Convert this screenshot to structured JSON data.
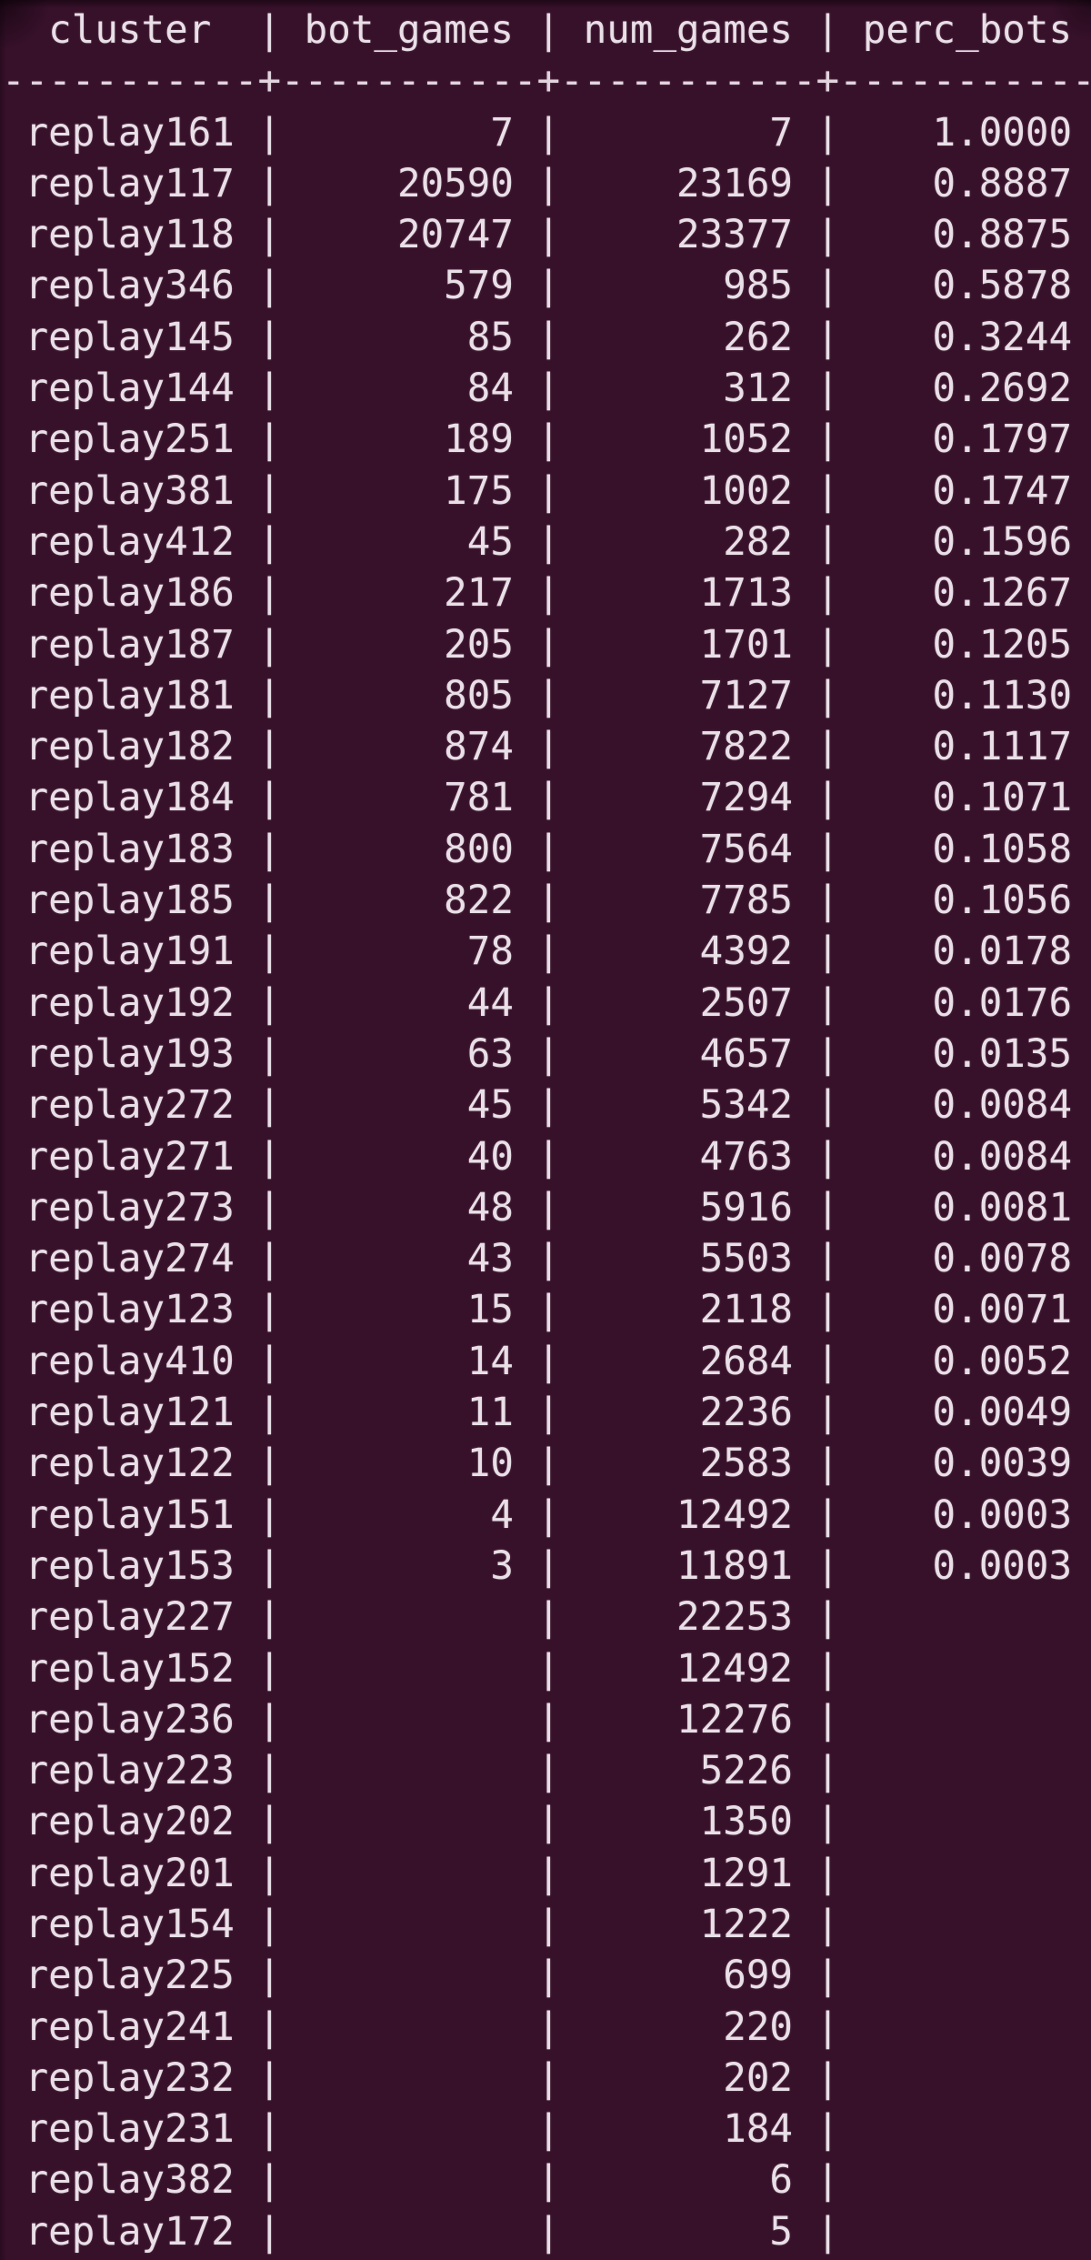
{
  "terminal": {
    "colors": {
      "background": "#37102a",
      "text": "#e9dfe7"
    },
    "table": {
      "columns": [
        "cluster",
        "bot_games",
        "num_games",
        "perc_bots"
      ],
      "column_content_width": 9,
      "rows": [
        {
          "cluster": "replay161",
          "bot_games": "7",
          "num_games": "7",
          "perc_bots": "1.0000"
        },
        {
          "cluster": "replay117",
          "bot_games": "20590",
          "num_games": "23169",
          "perc_bots": "0.8887"
        },
        {
          "cluster": "replay118",
          "bot_games": "20747",
          "num_games": "23377",
          "perc_bots": "0.8875"
        },
        {
          "cluster": "replay346",
          "bot_games": "579",
          "num_games": "985",
          "perc_bots": "0.5878"
        },
        {
          "cluster": "replay145",
          "bot_games": "85",
          "num_games": "262",
          "perc_bots": "0.3244"
        },
        {
          "cluster": "replay144",
          "bot_games": "84",
          "num_games": "312",
          "perc_bots": "0.2692"
        },
        {
          "cluster": "replay251",
          "bot_games": "189",
          "num_games": "1052",
          "perc_bots": "0.1797"
        },
        {
          "cluster": "replay381",
          "bot_games": "175",
          "num_games": "1002",
          "perc_bots": "0.1747"
        },
        {
          "cluster": "replay412",
          "bot_games": "45",
          "num_games": "282",
          "perc_bots": "0.1596"
        },
        {
          "cluster": "replay186",
          "bot_games": "217",
          "num_games": "1713",
          "perc_bots": "0.1267"
        },
        {
          "cluster": "replay187",
          "bot_games": "205",
          "num_games": "1701",
          "perc_bots": "0.1205"
        },
        {
          "cluster": "replay181",
          "bot_games": "805",
          "num_games": "7127",
          "perc_bots": "0.1130"
        },
        {
          "cluster": "replay182",
          "bot_games": "874",
          "num_games": "7822",
          "perc_bots": "0.1117"
        },
        {
          "cluster": "replay184",
          "bot_games": "781",
          "num_games": "7294",
          "perc_bots": "0.1071"
        },
        {
          "cluster": "replay183",
          "bot_games": "800",
          "num_games": "7564",
          "perc_bots": "0.1058"
        },
        {
          "cluster": "replay185",
          "bot_games": "822",
          "num_games": "7785",
          "perc_bots": "0.1056"
        },
        {
          "cluster": "replay191",
          "bot_games": "78",
          "num_games": "4392",
          "perc_bots": "0.0178"
        },
        {
          "cluster": "replay192",
          "bot_games": "44",
          "num_games": "2507",
          "perc_bots": "0.0176"
        },
        {
          "cluster": "replay193",
          "bot_games": "63",
          "num_games": "4657",
          "perc_bots": "0.0135"
        },
        {
          "cluster": "replay272",
          "bot_games": "45",
          "num_games": "5342",
          "perc_bots": "0.0084"
        },
        {
          "cluster": "replay271",
          "bot_games": "40",
          "num_games": "4763",
          "perc_bots": "0.0084"
        },
        {
          "cluster": "replay273",
          "bot_games": "48",
          "num_games": "5916",
          "perc_bots": "0.0081"
        },
        {
          "cluster": "replay274",
          "bot_games": "43",
          "num_games": "5503",
          "perc_bots": "0.0078"
        },
        {
          "cluster": "replay123",
          "bot_games": "15",
          "num_games": "2118",
          "perc_bots": "0.0071"
        },
        {
          "cluster": "replay410",
          "bot_games": "14",
          "num_games": "2684",
          "perc_bots": "0.0052"
        },
        {
          "cluster": "replay121",
          "bot_games": "11",
          "num_games": "2236",
          "perc_bots": "0.0049"
        },
        {
          "cluster": "replay122",
          "bot_games": "10",
          "num_games": "2583",
          "perc_bots": "0.0039"
        },
        {
          "cluster": "replay151",
          "bot_games": "4",
          "num_games": "12492",
          "perc_bots": "0.0003"
        },
        {
          "cluster": "replay153",
          "bot_games": "3",
          "num_games": "11891",
          "perc_bots": "0.0003"
        },
        {
          "cluster": "replay227",
          "bot_games": "",
          "num_games": "22253",
          "perc_bots": ""
        },
        {
          "cluster": "replay152",
          "bot_games": "",
          "num_games": "12492",
          "perc_bots": ""
        },
        {
          "cluster": "replay236",
          "bot_games": "",
          "num_games": "12276",
          "perc_bots": ""
        },
        {
          "cluster": "replay223",
          "bot_games": "",
          "num_games": "5226",
          "perc_bots": ""
        },
        {
          "cluster": "replay202",
          "bot_games": "",
          "num_games": "1350",
          "perc_bots": ""
        },
        {
          "cluster": "replay201",
          "bot_games": "",
          "num_games": "1291",
          "perc_bots": ""
        },
        {
          "cluster": "replay154",
          "bot_games": "",
          "num_games": "1222",
          "perc_bots": ""
        },
        {
          "cluster": "replay225",
          "bot_games": "",
          "num_games": "699",
          "perc_bots": ""
        },
        {
          "cluster": "replay241",
          "bot_games": "",
          "num_games": "220",
          "perc_bots": ""
        },
        {
          "cluster": "replay232",
          "bot_games": "",
          "num_games": "202",
          "perc_bots": ""
        },
        {
          "cluster": "replay231",
          "bot_games": "",
          "num_games": "184",
          "perc_bots": ""
        },
        {
          "cluster": "replay382",
          "bot_games": "",
          "num_games": "6",
          "perc_bots": ""
        },
        {
          "cluster": "replay172",
          "bot_games": "",
          "num_games": "5",
          "perc_bots": ""
        }
      ]
    }
  }
}
